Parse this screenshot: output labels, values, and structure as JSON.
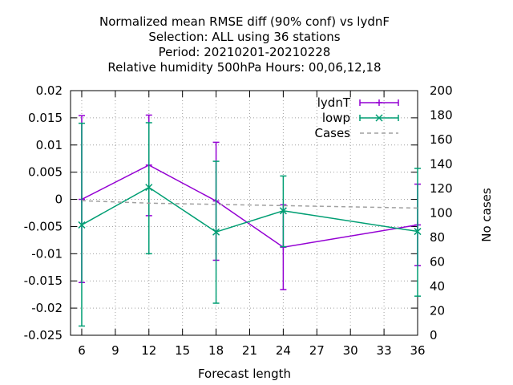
{
  "chart_data": {
    "type": "line",
    "title_lines": [
      "Normalized mean RMSE diff (90% conf) vs lydnF",
      "Selection: ALL using    36 stations",
      "Period: 20210201-20210228",
      "Relative humidity 500hPa   Hours:  00,06,12,18"
    ],
    "xlabel": "Forecast length",
    "ylabel": "",
    "y2label": "No cases",
    "xlim": [
      5,
      36
    ],
    "ylim": [
      -0.025,
      0.02
    ],
    "y2lim": [
      0,
      200
    ],
    "xticks": [
      "6",
      "9",
      "12",
      "15",
      "18",
      "21",
      "24",
      "27",
      "30",
      "33",
      "36"
    ],
    "xtick_values": [
      6,
      9,
      12,
      15,
      18,
      21,
      24,
      27,
      30,
      33,
      36
    ],
    "yticks": [
      "0.02",
      "0.015",
      "0.01",
      "0.005",
      "0",
      "-0.005",
      "-0.01",
      "-0.015",
      "-0.02",
      "-0.025"
    ],
    "ytick_values": [
      0.02,
      0.015,
      0.01,
      0.005,
      0,
      -0.005,
      -0.01,
      -0.015,
      -0.02,
      -0.025
    ],
    "y2ticks": [
      "200",
      "180",
      "160",
      "140",
      "120",
      "100",
      "80",
      "60",
      "40",
      "20",
      "0"
    ],
    "y2tick_values": [
      200,
      180,
      160,
      140,
      120,
      100,
      80,
      60,
      40,
      20,
      0
    ],
    "grid": true,
    "legend_position": "top-right",
    "series": [
      {
        "name": "lydnT",
        "color": "#9400d3",
        "x": [
          6,
          12,
          18,
          24,
          36
        ],
        "y": [
          0.0,
          0.0063,
          -0.0003,
          -0.0088,
          -0.0047
        ],
        "err_low": [
          -0.0153,
          -0.003,
          -0.0112,
          -0.0166,
          -0.0122
        ],
        "err_high": [
          0.0154,
          0.0155,
          0.0105,
          -0.001,
          0.0028
        ],
        "marker": "plus"
      },
      {
        "name": "lowp",
        "color": "#009e73",
        "x": [
          6,
          12,
          18,
          24,
          36
        ],
        "y": [
          -0.0047,
          0.0022,
          -0.006,
          -0.0021,
          -0.0059
        ],
        "err_low": [
          -0.0233,
          -0.01,
          -0.0191,
          -0.0087,
          -0.0178
        ],
        "err_high": [
          0.014,
          0.0141,
          0.007,
          0.0043,
          0.0057
        ],
        "marker": "x"
      },
      {
        "name": "Cases",
        "color": "#a0a0a0",
        "axis": "y2",
        "dashed": true,
        "x": [
          6,
          12,
          18,
          24,
          36
        ],
        "y": [
          110,
          108,
          107,
          106,
          104
        ]
      }
    ]
  }
}
